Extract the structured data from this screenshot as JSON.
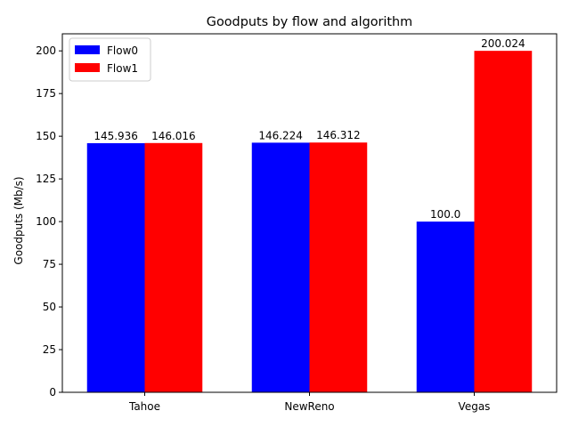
{
  "chart_data": {
    "type": "bar",
    "title": "Goodputs by flow and algorithm",
    "xlabel": "",
    "ylabel": "Goodputs (Mb/s)",
    "categories": [
      "Tahoe",
      "NewReno",
      "Vegas"
    ],
    "ylim": [
      0,
      210
    ],
    "yticks": [
      0,
      25,
      50,
      75,
      100,
      125,
      150,
      175,
      200
    ],
    "grid": false,
    "legend_position": "upper-left",
    "series": [
      {
        "name": "Flow0",
        "color": "#0000ff",
        "values": [
          145.936,
          146.224,
          100.0
        ],
        "labels": [
          "145.936",
          "146.224",
          "100.0"
        ]
      },
      {
        "name": "Flow1",
        "color": "#ff0000",
        "values": [
          146.016,
          146.312,
          200.024
        ],
        "labels": [
          "146.016",
          "146.312",
          "200.024"
        ]
      }
    ]
  }
}
